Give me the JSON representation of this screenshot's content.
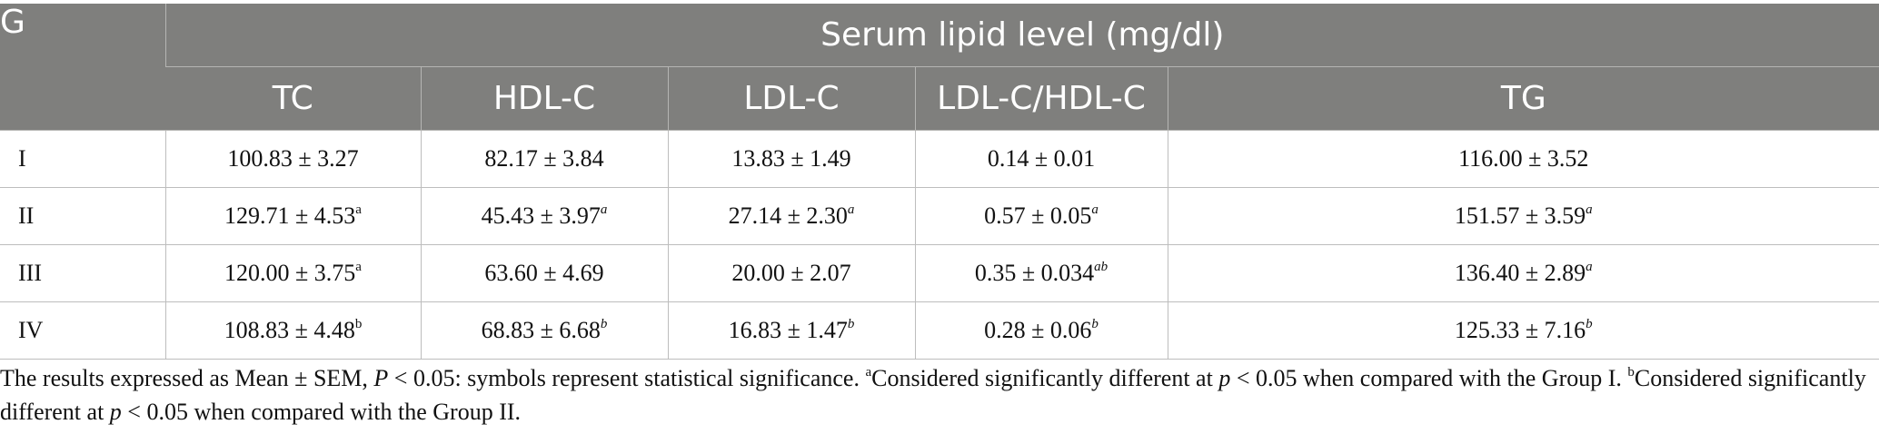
{
  "table": {
    "group_header": "G",
    "span_header": "Serum lipid level (mg/dl)",
    "columns": [
      "TC",
      "HDL-C",
      "LDL-C",
      "LDL-C/HDL-C",
      "TG"
    ],
    "rows": [
      {
        "group": "I",
        "cells": [
          {
            "v": "100.83 ± 3.27",
            "s": ""
          },
          {
            "v": "82.17 ± 3.84",
            "s": ""
          },
          {
            "v": "13.83 ± 1.49",
            "s": ""
          },
          {
            "v": "0.14 ± 0.01",
            "s": ""
          },
          {
            "v": "116.00 ± 3.52",
            "s": ""
          }
        ]
      },
      {
        "group": "II",
        "cells": [
          {
            "v": "129.71 ± 4.53",
            "s": "a"
          },
          {
            "v": "45.43 ± 3.97",
            "s": "a"
          },
          {
            "v": "27.14 ± 2.30",
            "s": "a"
          },
          {
            "v": "0.57 ± 0.05",
            "s": "a"
          },
          {
            "v": "151.57 ± 3.59",
            "s": "a"
          }
        ]
      },
      {
        "group": "III",
        "cells": [
          {
            "v": "120.00 ± 3.75",
            "s": "a"
          },
          {
            "v": "63.60 ± 4.69",
            "s": ""
          },
          {
            "v": "20.00 ± 2.07",
            "s": ""
          },
          {
            "v": "0.35 ± 0.034",
            "s": "ab"
          },
          {
            "v": "136.40 ± 2.89",
            "s": "a"
          }
        ]
      },
      {
        "group": "IV",
        "cells": [
          {
            "v": "108.83 ± 4.48",
            "s": "b"
          },
          {
            "v": "68.83 ± 6.68",
            "s": "b"
          },
          {
            "v": "16.83 ± 1.47",
            "s": "b"
          },
          {
            "v": "0.28 ± 0.06",
            "s": "b"
          },
          {
            "v": "125.33 ± 7.16",
            "s": "b"
          }
        ]
      }
    ]
  },
  "footnote": {
    "part1": "The results expressed as Mean ± SEM, ",
    "p_upper": "P",
    "part2": " < 0.05: symbols represent statistical significance. ",
    "sup_a": "a",
    "part3": "Considered significantly different at ",
    "p_lower_1": "p",
    "part4": " < 0.05 when compared with the Group I. ",
    "sup_b": "b",
    "part5": "Considered significantly different at ",
    "p_lower_2": "p",
    "part6": " < 0.05 when compared with the Group II."
  }
}
